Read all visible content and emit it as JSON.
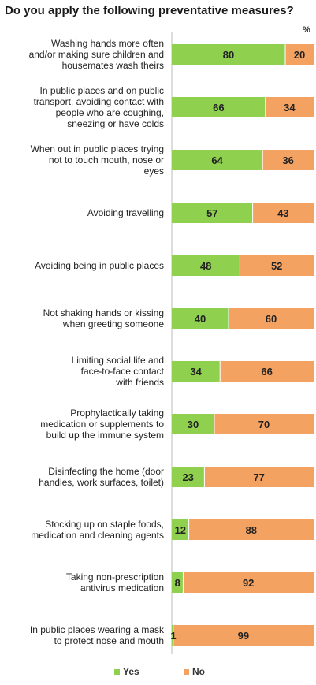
{
  "chart_data": {
    "type": "bar",
    "orientation": "horizontal",
    "stacked": true,
    "title": "Do you apply the following preventative measures?",
    "unit": "%",
    "categories": [
      "Washing hands more often and/or making sure children and housemates wash theirs",
      "In public places and on public transport, avoiding contact with people who are coughing, sneezing or have colds",
      "When out in public places trying not to touch mouth, nose or eyes",
      "Avoiding travelling",
      "Avoiding being in public places",
      "Not shaking hands or kissing when greeting someone",
      "Limiting social life and face-to-face contact with friends",
      "Prophylactically taking medication or supplements to build up the immune system",
      "Disinfecting the home (door handles, work surfaces, toilet)",
      "Stocking up on staple foods, medication and cleaning agents",
      "Taking non-prescription antivirus medication",
      "In public places wearing a mask to protect nose and mouth"
    ],
    "series": [
      {
        "name": "Yes",
        "color": "#8fd14f",
        "values": [
          80,
          66,
          64,
          57,
          48,
          40,
          34,
          30,
          23,
          12,
          8,
          1
        ]
      },
      {
        "name": "No",
        "color": "#f4a261",
        "values": [
          20,
          34,
          36,
          43,
          52,
          60,
          66,
          70,
          77,
          88,
          92,
          99
        ]
      }
    ],
    "xlim": [
      0,
      100
    ],
    "legend_position": "bottom",
    "grid": false
  }
}
